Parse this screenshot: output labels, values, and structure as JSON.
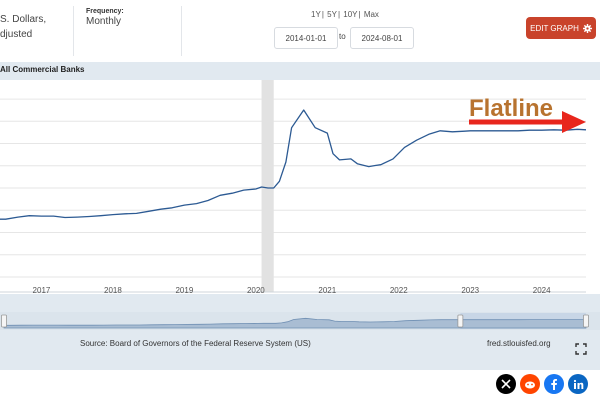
{
  "header": {
    "units_line1": "S. Dollars,",
    "units_line2": "djusted",
    "frequency_label": "Frequency:",
    "frequency_value": "Monthly",
    "range_options": [
      "1Y",
      "5Y",
      "10Y",
      "Max"
    ],
    "date_start": "2014-01-01",
    "date_to": "to",
    "date_end": "2024-08-01",
    "edit_button": "EDIT GRAPH"
  },
  "chart_title": "All Commercial Banks",
  "annotation": "Flatline",
  "footer": {
    "source": "Source: Board of Governors of the Federal Reserve System (US)",
    "url": "fred.stlouisfed.org"
  },
  "colors": {
    "series": "#2c5a93",
    "annotation_text": "#b8732f",
    "arrow": "#e8261d",
    "edit_button": "#c9432b"
  },
  "social": [
    "x-icon",
    "reddit-icon",
    "facebook-icon",
    "linkedin-icon"
  ],
  "chart_data": {
    "type": "line",
    "title": "All Commercial Banks",
    "x_tick_labels": [
      "2017",
      "2018",
      "2019",
      "2020",
      "2021",
      "2022",
      "2023",
      "2024"
    ],
    "xlim": [
      2016.42,
      2024.62
    ],
    "ylim": [
      0,
      1
    ],
    "y_tick_fractions": [
      0.072,
      0.179,
      0.286,
      0.393,
      0.5,
      0.607,
      0.714,
      0.821,
      0.927
    ],
    "recession_band": [
      2020.08,
      2020.25
    ],
    "series": [
      {
        "x": [
          2016.42,
          2016.5,
          2016.67,
          2016.83,
          2017.0,
          2017.17,
          2017.33,
          2017.5,
          2017.67,
          2017.83,
          2018.0,
          2018.17,
          2018.33,
          2018.5,
          2018.67,
          2018.83,
          2019.0,
          2019.17,
          2019.33,
          2019.5,
          2019.67,
          2019.83,
          2020.0,
          2020.08,
          2020.17,
          2020.25,
          2020.33,
          2020.42,
          2020.5,
          2020.67,
          2020.83,
          2021.0,
          2021.08,
          2021.17,
          2021.33,
          2021.42,
          2021.58,
          2021.67,
          2021.75,
          2021.92,
          2022.08,
          2022.25,
          2022.42,
          2022.58,
          2022.75,
          2022.92,
          2023.0,
          2023.17,
          2023.33,
          2023.5,
          2023.67,
          2023.83,
          2024.0,
          2024.17,
          2024.33,
          2024.5,
          2024.62
        ],
        "y": [
          0.35,
          0.35,
          0.36,
          0.367,
          0.365,
          0.365,
          0.358,
          0.36,
          0.363,
          0.367,
          0.372,
          0.376,
          0.378,
          0.388,
          0.398,
          0.405,
          0.418,
          0.425,
          0.44,
          0.465,
          0.475,
          0.49,
          0.495,
          0.505,
          0.5,
          0.5,
          0.532,
          0.625,
          0.79,
          0.875,
          0.79,
          0.764,
          0.665,
          0.635,
          0.64,
          0.617,
          0.603,
          0.608,
          0.612,
          0.64,
          0.695,
          0.73,
          0.758,
          0.775,
          0.77,
          0.773,
          0.775,
          0.775,
          0.775,
          0.775,
          0.775,
          0.778,
          0.778,
          0.78,
          0.778,
          0.782,
          0.78
        ]
      }
    ]
  }
}
